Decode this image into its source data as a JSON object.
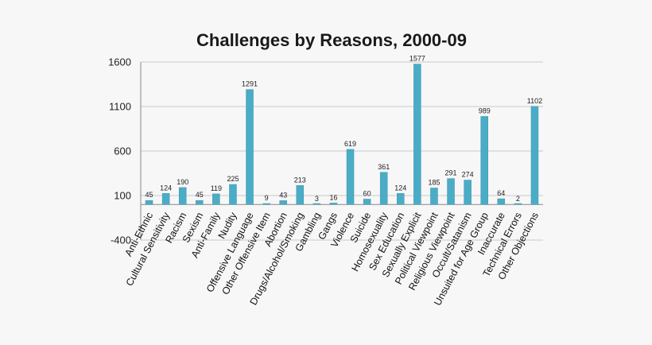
{
  "chart_data": {
    "type": "bar",
    "title": "Challenges by Reasons, 2000-09",
    "xlabel": "",
    "ylabel": "",
    "ylim": [
      -400,
      1600
    ],
    "yticks": [
      -400,
      100,
      600,
      1100,
      1600
    ],
    "grid": true,
    "legend": "none",
    "bar_color": "#4bacc6",
    "categories": [
      "Anti-Ethnic",
      "Cultural Sensitivity",
      "Racism",
      "Sexism",
      "Anti-Family",
      "Nudity",
      "Offensive Language",
      "Other Offensive Item",
      "Abortion",
      "Drugs/Alcohol/Smoking",
      "Gambling",
      "Gangs",
      "Violence",
      "Suicide",
      "Homosexuality",
      "Sex Education",
      "Sexually Explicit",
      "Political Viewpoint",
      "Religious Viewpoint",
      "Occult/Satanism",
      "Unsuited for Age Group",
      "Inaccurate",
      "Technical Errors",
      "Other Objections"
    ],
    "values": [
      45,
      124,
      190,
      45,
      119,
      225,
      1291,
      9,
      43,
      213,
      3,
      16,
      619,
      60,
      361,
      124,
      1577,
      185,
      291,
      274,
      989,
      64,
      2,
      1102
    ]
  }
}
